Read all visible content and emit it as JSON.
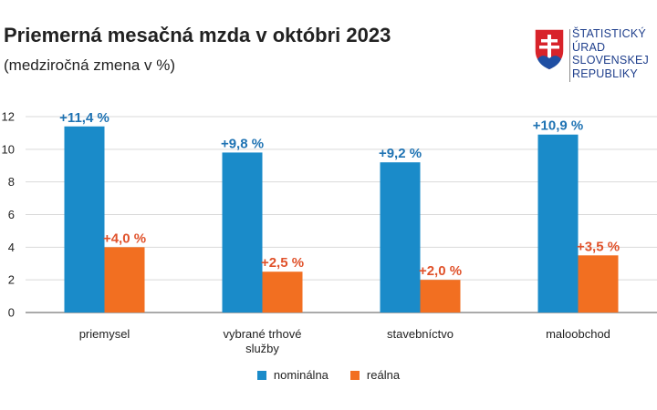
{
  "header": {
    "title": "Priemerná mesačná mzda v októbri 2023",
    "subtitle": "(medziročná zmena v %)"
  },
  "logo": {
    "icon": "slovak-coat-of-arms-icon",
    "lines": [
      "ŠTATISTICKÝ",
      "ÚRAD",
      "SLOVENSKEJ",
      "REPUBLIKY"
    ]
  },
  "colors": {
    "nominal": "#1a8bc9",
    "real": "#f26f21",
    "nominal_label": "#1f73b3",
    "real_label": "#e0522b"
  },
  "chart_data": {
    "type": "bar",
    "title": "Priemerná mesačná mzda v októbri 2023",
    "subtitle": "(medziročná zmena v %)",
    "categories": [
      [
        "priemysel"
      ],
      [
        "vybrané trhové",
        "služby"
      ],
      [
        "stavebníctvo"
      ],
      [
        "maloobchod"
      ]
    ],
    "series": [
      {
        "name": "nominálna",
        "values": [
          11.4,
          9.8,
          9.2,
          10.9
        ],
        "labels": [
          "+11,4 %",
          "+9,8 %",
          "+9,2 %",
          "+10,9 %"
        ]
      },
      {
        "name": "reálna",
        "values": [
          4.0,
          2.5,
          2.0,
          3.5
        ],
        "labels": [
          "+4,0 %",
          "+2,5 %",
          "+2,0 %",
          "+3,5 %"
        ]
      }
    ],
    "yticks": [
      0,
      2,
      4,
      6,
      8,
      10,
      12
    ],
    "ylim": [
      0,
      12
    ],
    "grid": true,
    "legend": "bottom-center"
  }
}
